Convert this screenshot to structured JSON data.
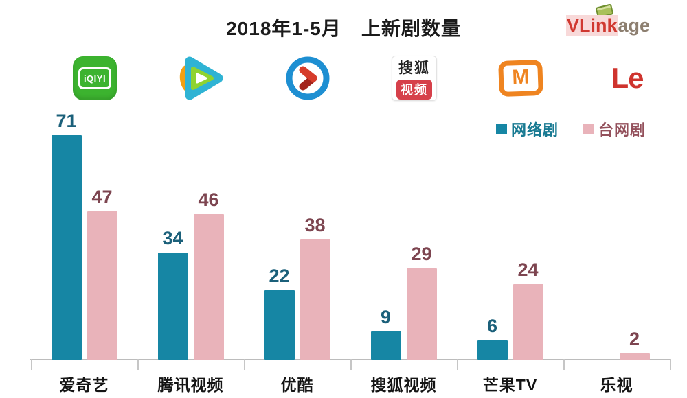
{
  "header": {
    "title": "2018年1-5月　上新剧数量",
    "brand": {
      "vlink": "VLink",
      "age": "age"
    }
  },
  "legend": {
    "items": [
      {
        "label": "网络剧",
        "swatch_color": "#1686a4",
        "text_color": "#187a92"
      },
      {
        "label": "台网剧",
        "swatch_color": "#e9b3ba",
        "text_color": "#93505b"
      }
    ]
  },
  "platform_logos": {
    "iqiyi": {
      "text": "iQIYI"
    },
    "sohu_video": {
      "line1": "搜狐",
      "line2": "视频"
    },
    "mango_tv": {
      "letter": "M"
    },
    "letv": {
      "text": "Le"
    }
  },
  "chart_data": {
    "type": "bar",
    "title": "2018年1-5月 上新剧数量",
    "categories": [
      "爱奇艺",
      "腾讯视频",
      "优酷",
      "搜狐视频",
      "芒果TV",
      "乐视"
    ],
    "series": [
      {
        "name": "网络剧",
        "color": "#1686a4",
        "label_color": "#1b607a",
        "values": [
          71,
          34,
          22,
          9,
          6,
          null
        ]
      },
      {
        "name": "台网剧",
        "color": "#e9b3ba",
        "label_color": "#7d4550",
        "values": [
          47,
          46,
          38,
          29,
          24,
          2
        ]
      }
    ],
    "ylim": [
      0,
      80
    ],
    "grid": false,
    "legend_position": "top-right",
    "value_labels": true
  }
}
